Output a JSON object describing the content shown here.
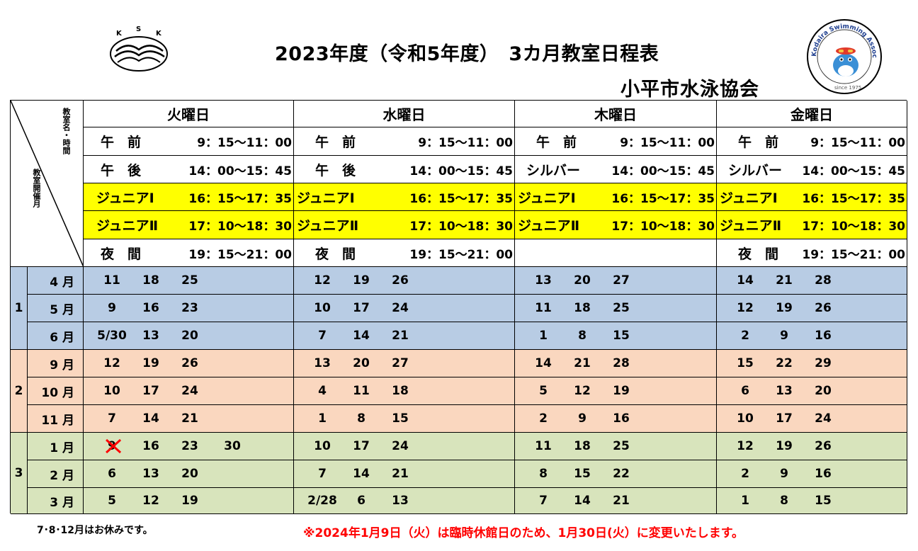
{
  "title": "2023年度（令和5年度）　3カ月教室日程表",
  "org": "小平市水泳協会",
  "logo_left": {
    "letters": [
      "K",
      "S",
      "K"
    ]
  },
  "logo_right": {
    "ring_text": "Kodaira Swimming Association",
    "since": "since 1975"
  },
  "header": {
    "corner_top": "教室名・時間",
    "corner_bottom": "教室開催月",
    "days": [
      "火曜日",
      "水曜日",
      "木曜日",
      "金曜日"
    ]
  },
  "classes": {
    "tue": [
      {
        "name": "午　前",
        "time": "9：15～11：00"
      },
      {
        "name": "午　後",
        "time": "14：00～15：45"
      },
      {
        "name": "ジュニアⅠ",
        "time": "16：15～17：35"
      },
      {
        "name": "ジュニアⅡ",
        "time": "17：10～18：30"
      },
      {
        "name": "夜　間",
        "time": "19：15～21：00"
      }
    ],
    "wed": [
      {
        "name": "午　前",
        "time": "9：15～11：00"
      },
      {
        "name": "午　後",
        "time": "14：00～15：45"
      },
      {
        "name": "ジュニアⅠ",
        "time": "16：15～17：35"
      },
      {
        "name": "ジュニアⅡ",
        "time": "17：10～18：30"
      },
      {
        "name": "夜　間",
        "time": "19：15～21：00"
      }
    ],
    "thu": [
      {
        "name": "午　前",
        "time": "9：15～11：00"
      },
      {
        "name": "シルバー",
        "time": "14：00～15：45"
      },
      {
        "name": "ジュニアⅠ",
        "time": "16：15～17：35"
      },
      {
        "name": "ジュニアⅡ",
        "time": "17：10～18：30"
      },
      {
        "name": "",
        "time": ""
      }
    ],
    "fri": [
      {
        "name": "午　前",
        "time": "9：15～11：00"
      },
      {
        "name": "シルバー",
        "time": "14：00～15：45"
      },
      {
        "name": "ジュニアⅠ",
        "time": "16：15～17：35"
      },
      {
        "name": "ジュニアⅡ",
        "time": "17：10～18：30"
      },
      {
        "name": "夜　間",
        "time": "19：15～21：00"
      }
    ]
  },
  "terms": [
    {
      "label": "1",
      "color": "#b8cce4",
      "months": [
        {
          "month": "4 月",
          "tue": [
            "11",
            "18",
            "25"
          ],
          "wed": [
            "12",
            "19",
            "26"
          ],
          "thu": [
            "13",
            "20",
            "27"
          ],
          "fri": [
            "14",
            "21",
            "28"
          ]
        },
        {
          "month": "5 月",
          "tue": [
            "9",
            "16",
            "23"
          ],
          "wed": [
            "10",
            "17",
            "24"
          ],
          "thu": [
            "11",
            "18",
            "25"
          ],
          "fri": [
            "12",
            "19",
            "26"
          ]
        },
        {
          "month": "6 月",
          "tue": [
            "5/30",
            "13",
            "20"
          ],
          "wed": [
            "7",
            "14",
            "21"
          ],
          "thu": [
            "1",
            "8",
            "15"
          ],
          "fri": [
            "2",
            "9",
            "16"
          ]
        }
      ]
    },
    {
      "label": "2",
      "color": "#fad7bf",
      "months": [
        {
          "month": "9 月",
          "tue": [
            "12",
            "19",
            "26"
          ],
          "wed": [
            "13",
            "20",
            "27"
          ],
          "thu": [
            "14",
            "21",
            "28"
          ],
          "fri": [
            "15",
            "22",
            "29"
          ]
        },
        {
          "month": "10 月",
          "tue": [
            "10",
            "17",
            "24"
          ],
          "wed": [
            "4",
            "11",
            "18"
          ],
          "thu": [
            "5",
            "12",
            "19"
          ],
          "fri": [
            "6",
            "13",
            "20"
          ]
        },
        {
          "month": "11 月",
          "tue": [
            "7",
            "14",
            "21"
          ],
          "wed": [
            "1",
            "8",
            "15"
          ],
          "thu": [
            "2",
            "9",
            "16"
          ],
          "fri": [
            "10",
            "17",
            "24"
          ]
        }
      ]
    },
    {
      "label": "3",
      "color": "#d8e4bc",
      "months": [
        {
          "month": "1 月",
          "tue": [
            "9",
            "16",
            "23",
            "30"
          ],
          "wed": [
            "10",
            "17",
            "24"
          ],
          "thu": [
            "11",
            "18",
            "25"
          ],
          "fri": [
            "12",
            "19",
            "26"
          ]
        },
        {
          "month": "2 月",
          "tue": [
            "6",
            "13",
            "20"
          ],
          "wed": [
            "7",
            "14",
            "21"
          ],
          "thu": [
            "8",
            "15",
            "22"
          ],
          "fri": [
            "2",
            "9",
            "16"
          ]
        },
        {
          "month": "3 月",
          "tue": [
            "5",
            "12",
            "19"
          ],
          "wed": [
            "2/28",
            "6",
            "13"
          ],
          "thu": [
            "7",
            "14",
            "21"
          ],
          "fri": [
            "1",
            "8",
            "15"
          ]
        }
      ]
    }
  ],
  "cancelled_mark": {
    "term": "3",
    "month": "1 月",
    "day": "tue",
    "value": "9"
  },
  "notes": {
    "left": "7･8･12月はお休みです。",
    "right": "※2024年1月9日（火）は臨時休館日のため、1月30日(火）に変更いたします。"
  }
}
